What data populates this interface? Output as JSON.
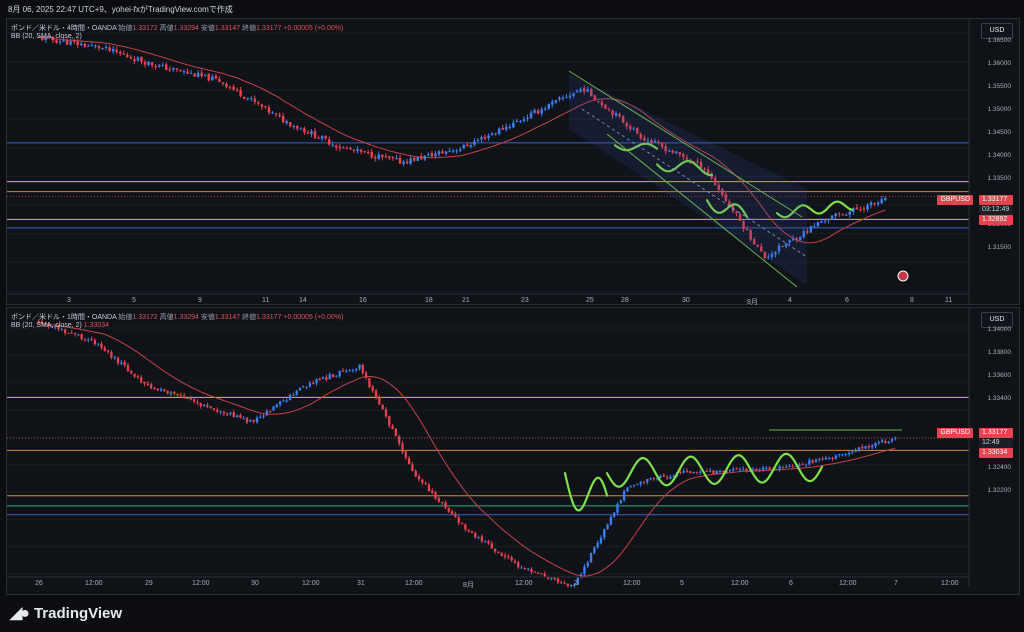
{
  "header": {
    "text": "8月 06, 2025 22:47 UTC+9、yohei-fxがTradingView.comで作成"
  },
  "brand": {
    "name": "TradingView"
  },
  "colors": {
    "up": "#3b7ff2",
    "down": "#e8414f",
    "bb": "#c6424b",
    "wave": "#7ee04a",
    "yellow": "#d7c24a",
    "orange": "#d38a3a",
    "blue": "#3a63c6",
    "teal": "#38a68a",
    "channel": "#6ab04c"
  },
  "panels": [
    {
      "legend": {
        "symbol": "ポンド／米ドル・4時間・OANDA",
        "o_lbl": "始値",
        "o": "1.33172",
        "h_lbl": "高値",
        "h": "1.33294",
        "l_lbl": "安値",
        "l": "1.33147",
        "c_lbl": "終値",
        "c": "1.33177",
        "chg": "+0.00005 (+0.00%)",
        "bb": "BB (20, SMA, close, 2)"
      },
      "currency": "USD",
      "y_labels": [
        "1.36500",
        "1.36000",
        "1.35500",
        "1.35000",
        "1.34500",
        "1.34000",
        "1.33500",
        "1.32500",
        "1.32000",
        "1.31500"
      ],
      "x_labels": [
        "3",
        "5",
        "9",
        "11",
        "14",
        "16",
        "18",
        "21",
        "23",
        "25",
        "28",
        "30",
        "8月",
        "4",
        "6",
        "8",
        "11"
      ],
      "tags": {
        "symbol": "GBPUSD",
        "price": "1.33177",
        "countdown": "03:12:49",
        "bb": "1.32892"
      }
    },
    {
      "legend": {
        "symbol": "ポンド／米ドル・1時間・OANDA",
        "o_lbl": "始値",
        "o": "1.33172",
        "h_lbl": "高値",
        "h": "1.33294",
        "l_lbl": "安値",
        "l": "1.33147",
        "c_lbl": "終値",
        "c": "1.33177",
        "chg": "+0.00005 (+0.00%)",
        "bb": "BB (20, SMA, close, 2)",
        "bb_val": "1.33034"
      },
      "currency": "USD",
      "y_labels": [
        "1.34000",
        "1.33800",
        "1.33600",
        "1.33400",
        "1.32800",
        "1.32600",
        "1.32400",
        "1.32200"
      ],
      "x_labels": [
        "26",
        "12:00",
        "29",
        "12:00",
        "30",
        "12:00",
        "31",
        "12:00",
        "8月",
        "12:00",
        "2",
        "12:00",
        "5",
        "12:00",
        "6",
        "12:00",
        "7",
        "12:00"
      ],
      "tags": {
        "symbol": "GBPUSD",
        "price": "1.33177",
        "countdown": "12:49",
        "bb": "1.33034"
      }
    }
  ],
  "chart_data": [
    {
      "type": "line",
      "title": "ポンド／米ドル・4時間・OANDA",
      "timeframe": "4時間",
      "x": [
        "3",
        "5",
        "9",
        "11",
        "14",
        "16",
        "18",
        "21",
        "23",
        "25",
        "28",
        "30",
        "8月",
        "4",
        "6"
      ],
      "series": [
        {
          "values": [
            1.365,
            1.363,
            1.359,
            1.356,
            1.348,
            1.342,
            1.339,
            1.342,
            1.348,
            1.3545,
            1.344,
            1.338,
            1.319,
            1.327,
            1.331
          ]
        }
      ],
      "ylim": [
        1.312,
        1.366
      ],
      "horizontal_levels": [
        1.343,
        1.3349,
        1.3328,
        1.327,
        1.3252
      ],
      "last_price": 1.33177
    },
    {
      "type": "line",
      "title": "ポンド／米ドル・1時間・OANDA",
      "timeframe": "1時間",
      "x": [
        "26",
        "12:00",
        "29",
        "12:00",
        "30",
        "12:00",
        "31",
        "12:00",
        "8月",
        "12:00",
        "2",
        "12:00",
        "5",
        "12:00",
        "6",
        "12:00",
        "7"
      ],
      "series": [
        {
          "values": [
            1.341,
            1.3395,
            1.336,
            1.3345,
            1.333,
            1.336,
            1.3375,
            1.329,
            1.3245,
            1.3215,
            1.32,
            1.328,
            1.329,
            1.3292,
            1.3295,
            1.3305,
            1.3318
          ]
        }
      ],
      "ylim": [
        1.321,
        1.3405
      ],
      "horizontal_levels": [
        1.335,
        1.3308,
        1.3272,
        1.3264,
        1.3257
      ],
      "last_price": 1.33177
    }
  ]
}
